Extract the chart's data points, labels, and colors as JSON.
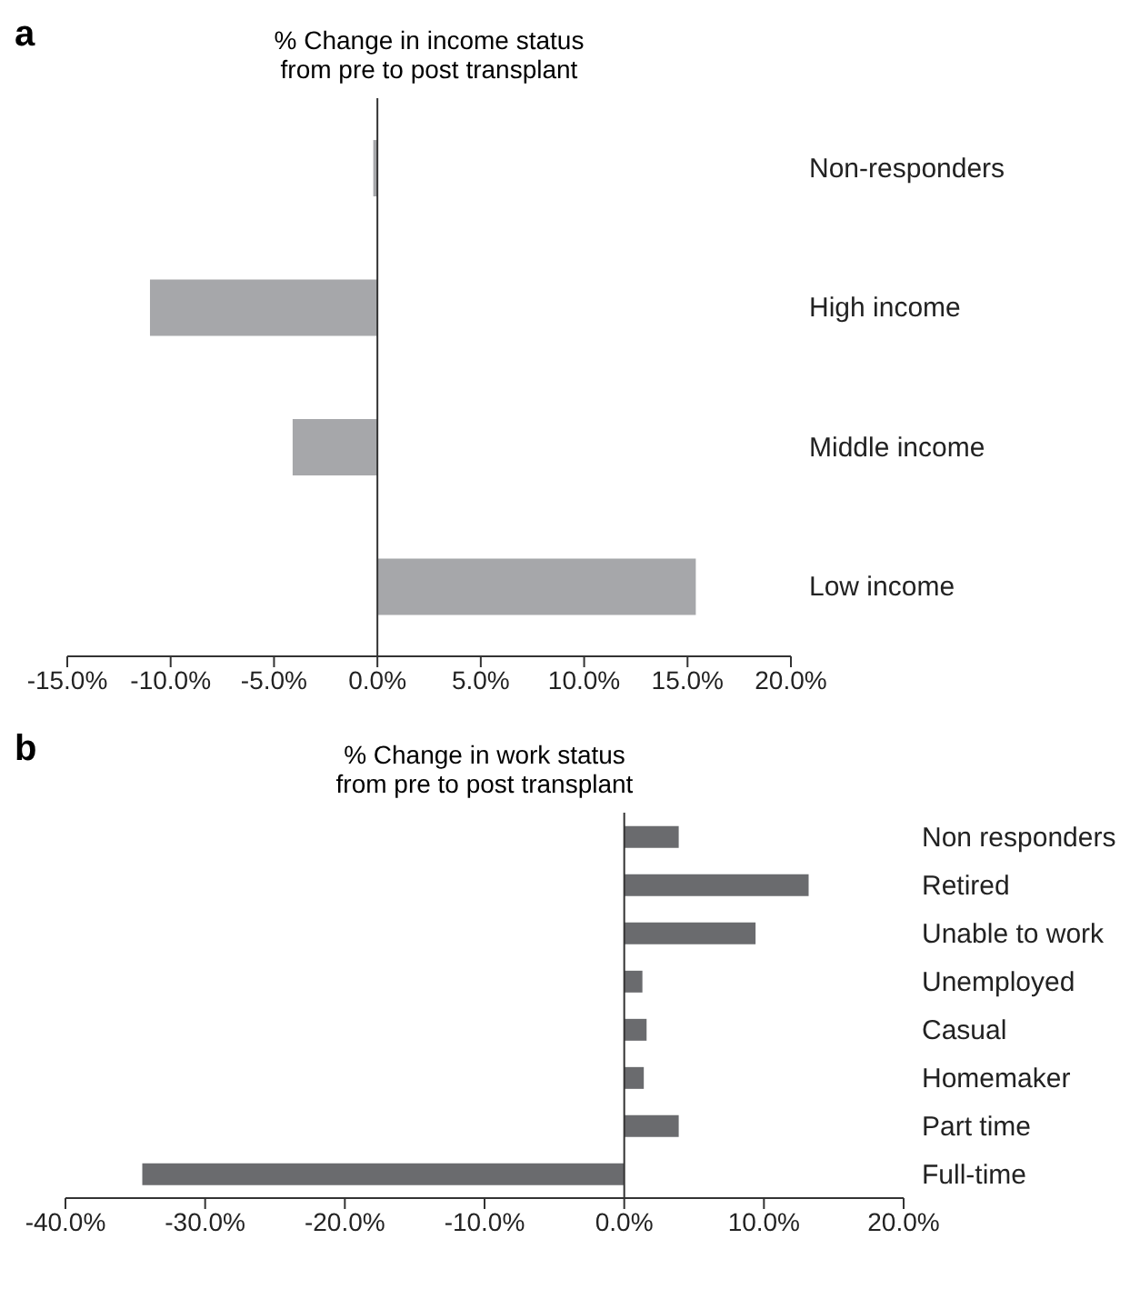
{
  "chart_data": [
    {
      "type": "bar",
      "orientation": "horizontal",
      "title": "% Change in income status from pre to post transplant",
      "annotations": [
        "a"
      ],
      "categories": [
        "Non-responders",
        "High income",
        "Middle income",
        "Low income"
      ],
      "values": [
        -0.2,
        -11.0,
        -4.1,
        15.4
      ],
      "color": "#a6a7aa",
      "xlim": [
        -15,
        20
      ],
      "xticks": [
        {
          "value": -15,
          "label": "-15.0%"
        },
        {
          "value": -10,
          "label": "-10.0%"
        },
        {
          "value": -5,
          "label": "-5.0%"
        },
        {
          "value": 0,
          "label": "0.0%"
        },
        {
          "value": 5,
          "label": "5.0%"
        },
        {
          "value": 10,
          "label": "10.0%"
        },
        {
          "value": 15,
          "label": "15.0%"
        },
        {
          "value": 20,
          "label": "20.0%"
        }
      ]
    },
    {
      "type": "bar",
      "orientation": "horizontal",
      "title": "% Change in work status from pre to post transplant",
      "annotations": [
        "b"
      ],
      "categories": [
        "Non responders",
        "Retired",
        "Unable to work",
        "Unemployed",
        "Casual",
        "Homemaker",
        "Part time",
        "Full-time"
      ],
      "values": [
        3.9,
        13.2,
        9.4,
        1.3,
        1.6,
        1.4,
        3.9,
        -34.5
      ],
      "color": "#6a6b6e",
      "xlim": [
        -40,
        20
      ],
      "xticks": [
        {
          "value": -40,
          "label": "-40.0%"
        },
        {
          "value": -30,
          "label": "-30.0%"
        },
        {
          "value": -20,
          "label": "-20.0%"
        },
        {
          "value": -10,
          "label": "-10.0%"
        },
        {
          "value": 0,
          "label": "0.0%"
        },
        {
          "value": 10,
          "label": "10.0%"
        },
        {
          "value": 20,
          "label": "20.0%"
        }
      ]
    }
  ]
}
